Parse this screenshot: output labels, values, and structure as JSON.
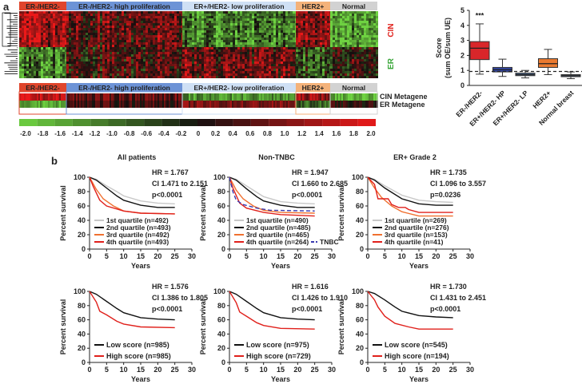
{
  "panel_a": {
    "label": "a",
    "groups": [
      {
        "name": "ER-/HER2-",
        "color": "#e0452c",
        "text_color": "#222"
      },
      {
        "name": "ER-/HER2- high proliferation",
        "color": "#6d93d6",
        "text_color": "#222"
      },
      {
        "name": "ER+/HER2- low proliferation",
        "color": "#cfe0f5",
        "text_color": "#222"
      },
      {
        "name": "HER2+",
        "color": "#f4b27a",
        "text_color": "#222"
      },
      {
        "name": "Normal",
        "color": "#d2d2d2",
        "text_color": "#222"
      }
    ],
    "heatmap_row_labels": {
      "cin": "CIN",
      "er": "ER"
    },
    "metagene_labels": [
      "CIN Metagene",
      "ER Metagene"
    ],
    "colorbar_ticks": [
      "-2.0",
      "-1.8",
      "-1.6",
      "-1.4",
      "-1.2",
      "-1.0",
      "-0.8",
      "-0.6",
      "-0.4",
      "-0.2",
      "0",
      "0.2",
      "0.4",
      "0.6",
      "0.8",
      "1.0",
      "1.2",
      "1.4",
      "1.6",
      "1.8",
      "2.0"
    ],
    "boxplot": {
      "type": "box",
      "ylabel_lines": [
        "Score",
        "(sum OE/sum UE)"
      ],
      "ylim": [
        0,
        5
      ],
      "yticks": [
        "0",
        "1",
        "2",
        "3",
        "4",
        "5"
      ],
      "reference_line": 0.93,
      "significance": "***",
      "boxes": [
        {
          "name": "ER-/HER2-",
          "min": 0.75,
          "q1": 1.72,
          "median": 2.48,
          "q3": 2.92,
          "max": 4.1,
          "color": "#d9262a"
        },
        {
          "name": "ER+/HER2- HP",
          "min": 0.6,
          "q1": 0.9,
          "median": 1.05,
          "q3": 1.2,
          "max": 1.75,
          "color": "#3347a8"
        },
        {
          "name": "ER+/HER2- LP",
          "min": 0.5,
          "q1": 0.65,
          "median": 0.72,
          "q3": 0.82,
          "max": 1.0,
          "color": "#4d6b96"
        },
        {
          "name": "HER2+",
          "min": 0.72,
          "q1": 1.2,
          "median": 1.45,
          "q3": 1.78,
          "max": 2.4,
          "color": "#ea7a30"
        },
        {
          "name": "Normal breast",
          "min": 0.45,
          "q1": 0.58,
          "median": 0.65,
          "q3": 0.72,
          "max": 0.9,
          "color": "#6f86a8"
        }
      ]
    }
  },
  "panel_b": {
    "label": "b",
    "ylabel": "Percent survival",
    "xlabel": "Years",
    "yticks": [
      "0",
      "20",
      "40",
      "60",
      "80",
      "100"
    ],
    "xticks": [
      "0",
      "5",
      "10",
      "15",
      "20",
      "25",
      "30"
    ]
  },
  "chart_data": [
    {
      "type": "line",
      "title": "All patients",
      "hr": "HR = 1.767",
      "ci": "CI 1.471 to 2.151",
      "p": "p<0.0001",
      "xlim": [
        0,
        30
      ],
      "ylim": [
        0,
        100
      ],
      "series": [
        {
          "name": "1st quartile (n=492)",
          "color": "#c8c8c8",
          "points": [
            [
              0,
              100
            ],
            [
              2,
              97
            ],
            [
              5,
              88
            ],
            [
              8,
              80
            ],
            [
              10,
              74
            ],
            [
              15,
              67
            ],
            [
              20,
              64
            ],
            [
              25,
              63
            ]
          ]
        },
        {
          "name": "2nd quartile (n=493)",
          "color": "#111111",
          "points": [
            [
              0,
              100
            ],
            [
              2,
              96
            ],
            [
              5,
              85
            ],
            [
              8,
              74
            ],
            [
              10,
              68
            ],
            [
              15,
              61
            ],
            [
              20,
              58
            ],
            [
              25,
              58
            ]
          ]
        },
        {
          "name": "3rd quartile (n=492)",
          "color": "#f07030",
          "points": [
            [
              0,
              100
            ],
            [
              2,
              83
            ],
            [
              4,
              70
            ],
            [
              7,
              60
            ],
            [
              10,
              53
            ],
            [
              15,
              50
            ],
            [
              25,
              49
            ]
          ]
        },
        {
          "name": "4th quartile (n=493)",
          "color": "#e0201b",
          "points": [
            [
              0,
              100
            ],
            [
              1,
              88
            ],
            [
              3,
              68
            ],
            [
              5,
              60
            ],
            [
              10,
              53
            ],
            [
              15,
              50
            ],
            [
              25,
              49
            ]
          ]
        }
      ]
    },
    {
      "type": "line",
      "title": "Non-TNBC",
      "hr": "HR = 1.947",
      "ci": "CI 1.660 to 2.685",
      "p": "p<0.0001",
      "xlim": [
        0,
        30
      ],
      "ylim": [
        0,
        100
      ],
      "series": [
        {
          "name": "1st quartile (n=490)",
          "color": "#c8c8c8",
          "points": [
            [
              0,
              100
            ],
            [
              2,
              97
            ],
            [
              5,
              88
            ],
            [
              8,
              79
            ],
            [
              10,
              73
            ],
            [
              15,
              66
            ],
            [
              20,
              64
            ],
            [
              25,
              63
            ]
          ]
        },
        {
          "name": "2nd quartile (n=485)",
          "color": "#111111",
          "points": [
            [
              0,
              100
            ],
            [
              2,
              96
            ],
            [
              5,
              84
            ],
            [
              8,
              73
            ],
            [
              10,
              67
            ],
            [
              15,
              61
            ],
            [
              20,
              58
            ],
            [
              25,
              58
            ]
          ]
        },
        {
          "name": "3rd quartile (n=465)",
          "color": "#f07030",
          "points": [
            [
              0,
              100
            ],
            [
              2,
              82
            ],
            [
              4,
              70
            ],
            [
              7,
              60
            ],
            [
              10,
              54
            ],
            [
              15,
              51
            ],
            [
              25,
              50
            ]
          ]
        },
        {
          "name": "4th quartile (n=264)",
          "color": "#e0201b",
          "points": [
            [
              0,
              100
            ],
            [
              1,
              85
            ],
            [
              3,
              64
            ],
            [
              5,
              57
            ],
            [
              10,
              51
            ],
            [
              15,
              48
            ],
            [
              25,
              46
            ]
          ]
        },
        {
          "name": "TNBC",
          "color": "#3a3ab0",
          "dashed": true,
          "points": [
            [
              0,
              100
            ],
            [
              1,
              80
            ],
            [
              2,
              68
            ],
            [
              4,
              62
            ],
            [
              8,
              57
            ],
            [
              12,
              54
            ],
            [
              25,
              53
            ]
          ]
        }
      ]
    },
    {
      "type": "line",
      "title": "ER+ Grade 2",
      "hr": "HR = 1.735",
      "ci": "CI 1.096 to 3.557",
      "p": "p=0.0236",
      "xlim": [
        0,
        30
      ],
      "ylim": [
        0,
        100
      ],
      "series": [
        {
          "name": "1st quartile (n=269)",
          "color": "#c8c8c8",
          "points": [
            [
              0,
              100
            ],
            [
              2,
              97
            ],
            [
              5,
              88
            ],
            [
              10,
              75
            ],
            [
              15,
              68
            ],
            [
              20,
              66
            ],
            [
              25,
              65
            ]
          ]
        },
        {
          "name": "2nd quartile (n=276)",
          "color": "#111111",
          "points": [
            [
              0,
              100
            ],
            [
              2,
              96
            ],
            [
              5,
              85
            ],
            [
              10,
              70
            ],
            [
              15,
              63
            ],
            [
              20,
              61
            ],
            [
              25,
              61
            ]
          ]
        },
        {
          "name": "3rd quartile (n=153)",
          "color": "#f07030",
          "points": [
            [
              0,
              100
            ],
            [
              2,
              85
            ],
            [
              4,
              72
            ],
            [
              7,
              60
            ],
            [
              10,
              52
            ],
            [
              15,
              46
            ],
            [
              25,
              46
            ]
          ]
        },
        {
          "name": "4th quartile (n=41)",
          "color": "#e0201b",
          "points": [
            [
              0,
              100
            ],
            [
              2,
              90
            ],
            [
              3,
              70
            ],
            [
              6,
              70
            ],
            [
              7,
              62
            ],
            [
              9,
              58
            ],
            [
              11,
              58
            ],
            [
              12,
              55
            ],
            [
              15,
              51
            ],
            [
              25,
              51
            ]
          ]
        }
      ]
    },
    {
      "type": "line",
      "title": "",
      "hr": "HR = 1.576",
      "ci": "CI 1.386 to 1.805",
      "p": "p<0.0001",
      "xlim": [
        0,
        30
      ],
      "ylim": [
        0,
        100
      ],
      "series": [
        {
          "name": "Low score (n=985)",
          "color": "#111111",
          "points": [
            [
              0,
              100
            ],
            [
              2,
              96
            ],
            [
              5,
              86
            ],
            [
              8,
              76
            ],
            [
              10,
              70
            ],
            [
              15,
              63
            ],
            [
              20,
              61
            ],
            [
              25,
              60
            ]
          ]
        },
        {
          "name": "High score (n=985)",
          "color": "#e0201b",
          "points": [
            [
              0,
              100
            ],
            [
              2,
              85
            ],
            [
              3,
              72
            ],
            [
              5,
              67
            ],
            [
              8,
              58
            ],
            [
              10,
              54
            ],
            [
              15,
              50
            ],
            [
              25,
              49
            ]
          ]
        }
      ]
    },
    {
      "type": "line",
      "title": "",
      "hr": "HR = 1.616",
      "ci": "CI 1.426 to 1.910",
      "p": "p<0.0001",
      "xlim": [
        0,
        30
      ],
      "ylim": [
        0,
        100
      ],
      "series": [
        {
          "name": "Low score (n=975)",
          "color": "#111111",
          "points": [
            [
              0,
              100
            ],
            [
              2,
              96
            ],
            [
              5,
              86
            ],
            [
              8,
              76
            ],
            [
              10,
              70
            ],
            [
              15,
              63
            ],
            [
              20,
              61
            ],
            [
              25,
              60
            ]
          ]
        },
        {
          "name": "High score (n=729)",
          "color": "#e0201b",
          "points": [
            [
              0,
              100
            ],
            [
              2,
              84
            ],
            [
              3,
              71
            ],
            [
              5,
              65
            ],
            [
              8,
              56
            ],
            [
              10,
              52
            ],
            [
              15,
              48
            ],
            [
              25,
              47
            ]
          ]
        }
      ]
    },
    {
      "type": "line",
      "title": "",
      "hr": "HR = 1.730",
      "ci": "CI 1.431 to 2.451",
      "p": "p<0.0001",
      "xlim": [
        0,
        30
      ],
      "ylim": [
        0,
        100
      ],
      "series": [
        {
          "name": "Low score (n=545)",
          "color": "#111111",
          "points": [
            [
              0,
              100
            ],
            [
              2,
              97
            ],
            [
              5,
              88
            ],
            [
              8,
              78
            ],
            [
              10,
              72
            ],
            [
              15,
              66
            ],
            [
              20,
              64
            ],
            [
              25,
              63
            ]
          ]
        },
        {
          "name": "High score (n=194)",
          "color": "#e0201b",
          "points": [
            [
              0,
              100
            ],
            [
              2,
              88
            ],
            [
              3,
              78
            ],
            [
              5,
              65
            ],
            [
              8,
              55
            ],
            [
              12,
              50
            ],
            [
              15,
              47
            ],
            [
              25,
              47
            ]
          ]
        }
      ]
    }
  ]
}
